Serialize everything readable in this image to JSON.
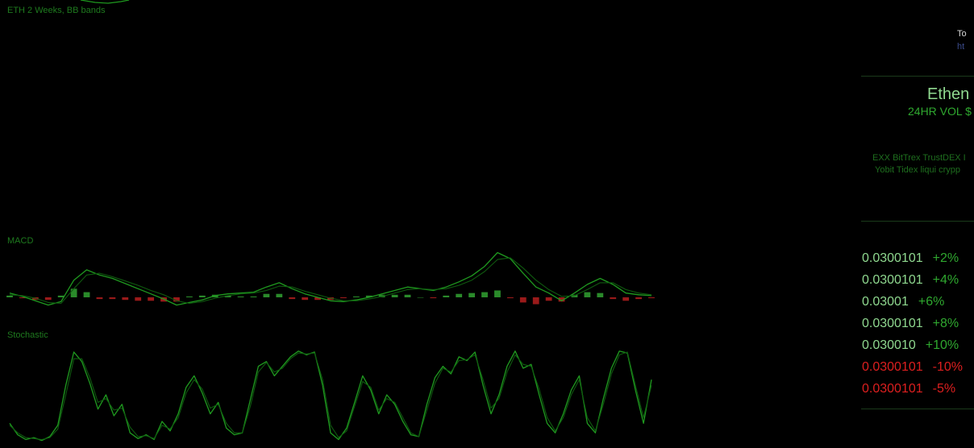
{
  "labels": {
    "main": "ETH 2 Weeks, BB bands",
    "macd": "MACD",
    "stochastic": "Stochastic"
  },
  "colors": {
    "line": "#1f9a1f",
    "line_dark": "#0f5a0f",
    "hist_pos": "#2a8a2a",
    "hist_neg": "#9a1a1a",
    "price_up": "#8fd88f",
    "pct_up": "#2fa82f",
    "price_down": "#dd1f1f"
  },
  "panel": {
    "top_line1": "To",
    "top_line2": "ht",
    "title": "Ethen",
    "volume": "24HR VOL $",
    "exchanges_line1": "EXX BitTrex TrustDEX I",
    "exchanges_line2": "Yobit Tidex liqui crypp",
    "prices": [
      {
        "price": "0.0300101",
        "change": "+2%",
        "direction": "up"
      },
      {
        "price": "0.0300101",
        "change": "+4%",
        "direction": "up"
      },
      {
        "price": "0.03001",
        "change": "+6%",
        "direction": "up"
      },
      {
        "price": "0.0300101",
        "change": "+8%",
        "direction": "up"
      },
      {
        "price": "0.030010",
        "change": "+10%",
        "direction": "up"
      },
      {
        "price": "0.0300101",
        "change": "-10%",
        "direction": "down"
      },
      {
        "price": "0.0300101",
        "change": "-5%",
        "direction": "down"
      }
    ]
  },
  "chart_data": [
    {
      "type": "line",
      "name": "macd",
      "x": [
        0,
        2,
        4,
        6,
        8,
        10,
        12,
        14,
        16,
        18,
        20,
        22,
        24,
        26,
        28,
        30,
        32,
        34,
        36,
        38,
        40,
        42,
        44,
        46,
        48,
        50,
        52,
        54,
        56,
        58,
        60,
        62,
        64,
        66,
        68,
        70,
        72,
        74,
        76,
        78,
        80,
        82,
        84,
        86,
        88,
        90,
        92,
        94,
        96,
        98,
        100
      ],
      "series": [
        {
          "values": [
            5,
            1,
            -4,
            -9,
            -5,
            20,
            32,
            26,
            22,
            16,
            10,
            4,
            -2,
            -9,
            -6,
            -3,
            2,
            4,
            5,
            6,
            12,
            17,
            10,
            4,
            0,
            -4,
            -5,
            -3,
            0,
            4,
            8,
            12,
            10,
            8,
            12,
            18,
            25,
            36,
            52,
            45,
            28,
            12,
            5,
            -4,
            5,
            15,
            22,
            15,
            5,
            3,
            2
          ]
        },
        {
          "values": [
            3,
            2,
            -1,
            -6,
            -7,
            10,
            26,
            28,
            24,
            19,
            14,
            8,
            3,
            -4,
            -7,
            -5,
            -1,
            2,
            4,
            5,
            8,
            13,
            12,
            7,
            3,
            -1,
            -4,
            -4,
            -2,
            1,
            5,
            9,
            10,
            9,
            10,
            14,
            20,
            30,
            44,
            46,
            34,
            20,
            9,
            1,
            2,
            9,
            17,
            17,
            9,
            5,
            3
          ]
        }
      ],
      "histogram": [
        2,
        -1,
        -3,
        -3,
        2,
        10,
        6,
        -2,
        -2,
        -3,
        -4,
        -4,
        -5,
        -5,
        1,
        2,
        3,
        2,
        1,
        1,
        4,
        4,
        -2,
        -3,
        -3,
        -3,
        -1,
        1,
        2,
        3,
        3,
        3,
        0,
        -1,
        2,
        4,
        5,
        6,
        8,
        -1,
        -6,
        -8,
        -4,
        -5,
        3,
        6,
        5,
        -2,
        -4,
        -2,
        -1
      ],
      "ylim": [
        -15,
        60
      ]
    },
    {
      "type": "line",
      "name": "stochastic",
      "x": [
        0,
        1,
        2,
        3,
        4,
        5,
        6,
        7,
        8,
        9,
        10,
        11,
        12,
        13,
        14,
        15,
        16,
        17,
        18,
        19,
        20,
        21,
        22,
        23,
        24,
        25,
        26,
        27,
        28,
        29,
        30,
        31,
        32,
        33,
        34,
        35,
        36,
        37,
        38,
        39,
        40,
        41,
        42,
        43,
        44,
        45,
        46,
        47,
        48,
        49,
        50,
        51,
        52,
        53,
        54,
        55,
        56,
        57,
        58,
        59,
        60,
        61,
        62,
        63,
        64,
        65,
        66,
        67,
        68,
        69,
        70,
        71,
        72,
        73,
        74,
        75,
        76,
        77,
        78,
        79,
        80
      ],
      "series": [
        {
          "values": [
            20,
            8,
            3,
            5,
            2,
            6,
            18,
            60,
            95,
            85,
            62,
            35,
            50,
            28,
            40,
            10,
            4,
            8,
            3,
            22,
            12,
            30,
            58,
            70,
            52,
            30,
            42,
            15,
            8,
            10,
            45,
            80,
            85,
            70,
            80,
            90,
            96,
            92,
            95,
            60,
            10,
            3,
            15,
            42,
            70,
            55,
            30,
            50,
            40,
            22,
            8,
            6,
            40,
            68,
            80,
            72,
            90,
            86,
            95,
            60,
            30,
            50,
            80,
            96,
            78,
            82,
            50,
            20,
            10,
            30,
            55,
            70,
            20,
            10,
            46,
            78,
            96,
            94,
            55,
            20,
            66
          ]
        },
        {
          "values": [
            18,
            10,
            5,
            4,
            3,
            5,
            14,
            50,
            88,
            88,
            68,
            42,
            46,
            34,
            36,
            16,
            6,
            7,
            4,
            18,
            14,
            26,
            52,
            66,
            56,
            36,
            40,
            20,
            10,
            10,
            38,
            74,
            84,
            74,
            78,
            88,
            94,
            93,
            94,
            66,
            18,
            5,
            12,
            38,
            64,
            58,
            34,
            46,
            42,
            26,
            10,
            6,
            34,
            62,
            78,
            74,
            86,
            87,
            92,
            66,
            36,
            46,
            74,
            92,
            82,
            80,
            56,
            26,
            12,
            26,
            50,
            66,
            26,
            12,
            40,
            72,
            92,
            95,
            60,
            26,
            60
          ]
        }
      ],
      "ylim": [
        0,
        100
      ]
    }
  ]
}
